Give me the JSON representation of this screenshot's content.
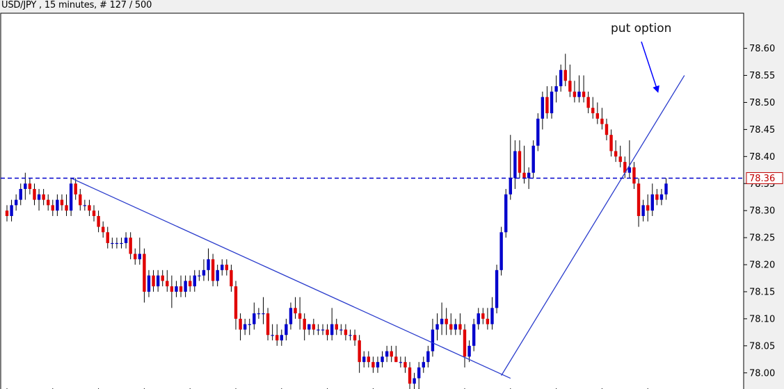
{
  "chart_data": {
    "type": "candlestick",
    "title": "USD/JPY , 15 minutes, # 127 / 500",
    "ylim": [
      77.965,
      78.665
    ],
    "yticks": [
      "78.60",
      "78.55",
      "78.50",
      "78.45",
      "78.40",
      "78.35",
      "78.30",
      "78.25",
      "78.20",
      "78.15",
      "78.10",
      "78.05",
      "78.00"
    ],
    "grid": false,
    "up_color": "#0000cc",
    "down_color": "#e00000",
    "reference_level": {
      "value": 78.36,
      "label": "78.36",
      "color": "#0000cc"
    },
    "annotations": [
      {
        "text": "put option"
      }
    ],
    "trendlines": [
      {
        "from_index": 14,
        "from_value": 78.36,
        "to_index": 110,
        "to_value": 77.99
      },
      {
        "from_index": 108,
        "from_value": 77.995,
        "to_index": 148,
        "to_value": 78.55
      }
    ],
    "candles": [
      [
        78.3,
        78.31,
        78.28,
        78.29
      ],
      [
        78.29,
        78.32,
        78.28,
        78.31
      ],
      [
        78.31,
        78.33,
        78.3,
        78.32
      ],
      [
        78.32,
        78.35,
        78.31,
        78.34
      ],
      [
        78.34,
        78.37,
        78.32,
        78.35
      ],
      [
        78.35,
        78.36,
        78.33,
        78.34
      ],
      [
        78.34,
        78.35,
        78.31,
        78.32
      ],
      [
        78.32,
        78.34,
        78.3,
        78.33
      ],
      [
        78.33,
        78.34,
        78.31,
        78.32
      ],
      [
        78.32,
        78.33,
        78.3,
        78.31
      ],
      [
        78.31,
        78.32,
        78.29,
        78.3
      ],
      [
        78.3,
        78.33,
        78.29,
        78.32
      ],
      [
        78.32,
        78.33,
        78.3,
        78.31
      ],
      [
        78.31,
        78.33,
        78.29,
        78.3
      ],
      [
        78.3,
        78.36,
        78.29,
        78.35
      ],
      [
        78.35,
        78.36,
        78.32,
        78.33
      ],
      [
        78.33,
        78.34,
        78.3,
        78.31
      ],
      [
        78.31,
        78.32,
        78.3,
        78.31
      ],
      [
        78.31,
        78.32,
        78.29,
        78.3
      ],
      [
        78.3,
        78.31,
        78.28,
        78.29
      ],
      [
        78.29,
        78.3,
        78.26,
        78.27
      ],
      [
        78.27,
        78.28,
        78.25,
        78.26
      ],
      [
        78.26,
        78.27,
        78.23,
        78.24
      ],
      [
        78.24,
        78.25,
        78.23,
        78.24
      ],
      [
        78.24,
        78.25,
        78.23,
        78.24
      ],
      [
        78.24,
        78.25,
        78.23,
        78.24
      ],
      [
        78.24,
        78.26,
        78.23,
        78.25
      ],
      [
        78.25,
        78.26,
        78.21,
        78.22
      ],
      [
        78.22,
        78.23,
        78.2,
        78.21
      ],
      [
        78.21,
        78.25,
        78.2,
        78.22
      ],
      [
        78.22,
        78.23,
        78.13,
        78.15
      ],
      [
        78.15,
        78.19,
        78.14,
        78.18
      ],
      [
        78.18,
        78.19,
        78.15,
        78.16
      ],
      [
        78.16,
        78.19,
        78.15,
        78.18
      ],
      [
        78.18,
        78.19,
        78.16,
        78.17
      ],
      [
        78.17,
        78.19,
        78.15,
        78.16
      ],
      [
        78.16,
        78.18,
        78.12,
        78.15
      ],
      [
        78.15,
        78.17,
        78.14,
        78.16
      ],
      [
        78.16,
        78.18,
        78.14,
        78.15
      ],
      [
        78.15,
        78.18,
        78.14,
        78.17
      ],
      [
        78.17,
        78.18,
        78.15,
        78.16
      ],
      [
        78.16,
        78.19,
        78.15,
        78.18
      ],
      [
        78.18,
        78.19,
        78.17,
        78.18
      ],
      [
        78.18,
        78.21,
        78.17,
        78.19
      ],
      [
        78.19,
        78.23,
        78.17,
        78.21
      ],
      [
        78.21,
        78.22,
        78.16,
        78.17
      ],
      [
        78.17,
        78.2,
        78.16,
        78.19
      ],
      [
        78.19,
        78.21,
        78.18,
        78.2
      ],
      [
        78.2,
        78.21,
        78.18,
        78.19
      ],
      [
        78.19,
        78.2,
        78.15,
        78.16
      ],
      [
        78.16,
        78.17,
        78.08,
        78.1
      ],
      [
        78.1,
        78.11,
        78.06,
        78.08
      ],
      [
        78.08,
        78.1,
        78.07,
        78.09
      ],
      [
        78.09,
        78.1,
        78.07,
        78.09
      ],
      [
        78.09,
        78.13,
        78.08,
        78.11
      ],
      [
        78.11,
        78.12,
        78.1,
        78.11
      ],
      [
        78.11,
        78.14,
        78.09,
        78.11
      ],
      [
        78.11,
        78.12,
        78.06,
        78.07
      ],
      [
        78.07,
        78.09,
        78.06,
        78.07
      ],
      [
        78.07,
        78.09,
        78.05,
        78.06
      ],
      [
        78.06,
        78.08,
        78.05,
        78.07
      ],
      [
        78.07,
        78.1,
        78.06,
        78.09
      ],
      [
        78.09,
        78.13,
        78.08,
        78.12
      ],
      [
        78.12,
        78.14,
        78.1,
        78.11
      ],
      [
        78.11,
        78.14,
        78.08,
        78.1
      ],
      [
        78.1,
        78.11,
        78.06,
        78.08
      ],
      [
        78.08,
        78.09,
        78.07,
        78.09
      ],
      [
        78.09,
        78.1,
        78.07,
        78.08
      ],
      [
        78.08,
        78.09,
        78.07,
        78.08
      ],
      [
        78.08,
        78.09,
        78.07,
        78.08
      ],
      [
        78.08,
        78.09,
        78.06,
        78.07
      ],
      [
        78.07,
        78.12,
        78.06,
        78.09
      ],
      [
        78.09,
        78.1,
        78.07,
        78.08
      ],
      [
        78.08,
        78.09,
        78.07,
        78.08
      ],
      [
        78.08,
        78.09,
        78.06,
        78.07
      ],
      [
        78.07,
        78.08,
        78.06,
        78.07
      ],
      [
        78.07,
        78.08,
        78.05,
        78.06
      ],
      [
        78.06,
        78.07,
        78.0,
        78.02
      ],
      [
        78.02,
        78.04,
        78.01,
        78.03
      ],
      [
        78.03,
        78.04,
        78.01,
        78.02
      ],
      [
        78.02,
        78.03,
        78.0,
        78.01
      ],
      [
        78.01,
        78.03,
        78.0,
        78.02
      ],
      [
        78.02,
        78.04,
        78.01,
        78.03
      ],
      [
        78.03,
        78.05,
        78.02,
        78.04
      ],
      [
        78.04,
        78.05,
        78.02,
        78.03
      ],
      [
        78.03,
        78.05,
        78.02,
        78.02
      ],
      [
        78.02,
        78.03,
        78.01,
        78.02
      ],
      [
        78.02,
        78.03,
        78.0,
        78.01
      ],
      [
        78.01,
        78.02,
        77.97,
        77.98
      ],
      [
        77.98,
        78.0,
        77.97,
        77.99
      ],
      [
        77.99,
        78.02,
        77.97,
        78.01
      ],
      [
        78.01,
        78.03,
        78.0,
        78.02
      ],
      [
        78.02,
        78.05,
        78.01,
        78.04
      ],
      [
        78.04,
        78.1,
        78.03,
        78.08
      ],
      [
        78.08,
        78.11,
        78.06,
        78.09
      ],
      [
        78.09,
        78.13,
        78.07,
        78.1
      ],
      [
        78.1,
        78.12,
        78.07,
        78.09
      ],
      [
        78.09,
        78.11,
        78.07,
        78.08
      ],
      [
        78.08,
        78.1,
        78.07,
        78.09
      ],
      [
        78.09,
        78.11,
        78.07,
        78.08
      ],
      [
        78.08,
        78.09,
        78.01,
        78.03
      ],
      [
        78.03,
        78.06,
        78.02,
        78.05
      ],
      [
        78.05,
        78.1,
        78.04,
        78.09
      ],
      [
        78.09,
        78.12,
        78.08,
        78.11
      ],
      [
        78.11,
        78.12,
        78.09,
        78.1
      ],
      [
        78.1,
        78.12,
        78.08,
        78.09
      ],
      [
        78.09,
        78.14,
        78.08,
        78.12
      ],
      [
        78.12,
        78.2,
        78.11,
        78.19
      ],
      [
        78.19,
        78.27,
        78.18,
        78.26
      ],
      [
        78.26,
        78.34,
        78.25,
        78.33
      ],
      [
        78.33,
        78.44,
        78.32,
        78.36
      ],
      [
        78.36,
        78.43,
        78.34,
        78.41
      ],
      [
        78.41,
        78.43,
        78.36,
        78.37
      ],
      [
        78.37,
        78.42,
        78.35,
        78.36
      ],
      [
        78.36,
        78.38,
        78.34,
        78.37
      ],
      [
        78.37,
        78.43,
        78.36,
        78.42
      ],
      [
        78.42,
        78.48,
        78.41,
        78.47
      ],
      [
        78.47,
        78.52,
        78.45,
        78.51
      ],
      [
        78.51,
        78.53,
        78.47,
        78.48
      ],
      [
        78.48,
        78.53,
        78.47,
        78.52
      ],
      [
        78.52,
        78.55,
        78.5,
        78.53
      ],
      [
        78.53,
        78.57,
        78.52,
        78.56
      ],
      [
        78.56,
        78.59,
        78.53,
        78.54
      ],
      [
        78.54,
        78.57,
        78.51,
        78.52
      ],
      [
        78.52,
        78.54,
        78.5,
        78.51
      ],
      [
        78.51,
        78.55,
        78.5,
        78.52
      ],
      [
        78.52,
        78.55,
        78.5,
        78.51
      ],
      [
        78.51,
        78.52,
        78.48,
        78.49
      ],
      [
        78.49,
        78.51,
        78.47,
        78.48
      ],
      [
        78.48,
        78.5,
        78.46,
        78.47
      ],
      [
        78.47,
        78.49,
        78.45,
        78.46
      ],
      [
        78.46,
        78.47,
        78.43,
        78.44
      ],
      [
        78.44,
        78.45,
        78.4,
        78.41
      ],
      [
        78.41,
        78.43,
        78.39,
        78.4
      ],
      [
        78.4,
        78.42,
        78.38,
        78.39
      ],
      [
        78.39,
        78.4,
        78.36,
        78.37
      ],
      [
        78.37,
        78.43,
        78.36,
        78.38
      ],
      [
        78.38,
        78.39,
        78.34,
        78.35
      ],
      [
        78.35,
        78.36,
        78.27,
        78.29
      ],
      [
        78.29,
        78.32,
        78.28,
        78.31
      ],
      [
        78.31,
        78.33,
        78.28,
        78.3
      ],
      [
        78.3,
        78.35,
        78.29,
        78.33
      ],
      [
        78.33,
        78.34,
        78.31,
        78.32
      ],
      [
        78.32,
        78.34,
        78.31,
        78.33
      ],
      [
        78.33,
        78.36,
        78.32,
        78.35
      ]
    ]
  }
}
